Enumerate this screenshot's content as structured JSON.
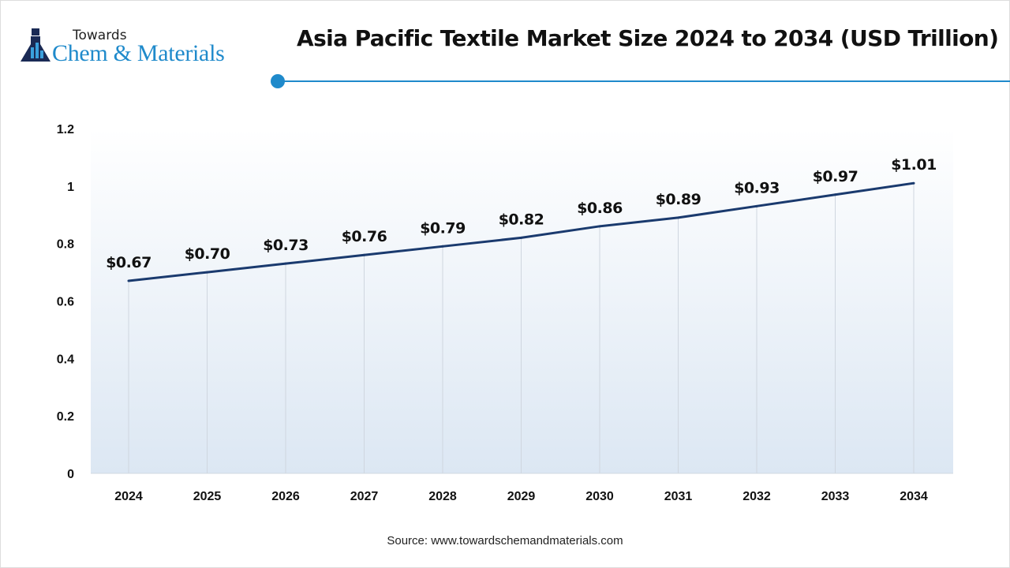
{
  "logo": {
    "line1": "Towards",
    "line2": "Chem & Materials"
  },
  "header": {
    "title": "Asia Pacific Textile Market Size 2024 to 2034 (USD Trillion)"
  },
  "source": "Source: www.towardschemandmaterials.com",
  "colors": {
    "accent": "#1f8acb",
    "line": "#1a3a6e"
  },
  "chart_data": {
    "type": "line",
    "title": "Asia Pacific Textile Market Size 2024 to 2034 (USD Trillion)",
    "categories": [
      "2024",
      "2025",
      "2026",
      "2027",
      "2028",
      "2029",
      "2030",
      "2031",
      "2032",
      "2033",
      "2034"
    ],
    "values": [
      0.67,
      0.7,
      0.73,
      0.76,
      0.79,
      0.82,
      0.86,
      0.89,
      0.93,
      0.97,
      1.01
    ],
    "data_labels": [
      "$0.67",
      "$0.70",
      "$0.73",
      "$0.76",
      "$0.79",
      "$0.82",
      "$0.86",
      "$0.89",
      "$0.93",
      "$0.97",
      "$1.01"
    ],
    "yticks": [
      "0",
      "0.2",
      "0.4",
      "0.6",
      "0.8",
      "1",
      "1.2"
    ],
    "ylim": [
      0,
      1.2
    ],
    "grid": "vertical drop lines",
    "xlabel": "",
    "ylabel": ""
  }
}
